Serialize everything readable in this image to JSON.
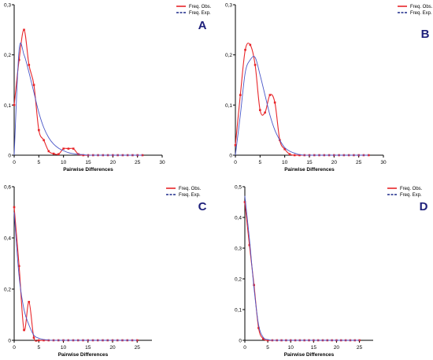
{
  "chart_data": [
    {
      "type": "line",
      "panel_letter": "A",
      "xlabel": "Pairwise Differences",
      "ylabel": "",
      "xlim": [
        0,
        30
      ],
      "ylim": [
        0,
        0.3
      ],
      "x_ticks": [
        "0",
        "5",
        "10",
        "15",
        "20",
        "25",
        "30"
      ],
      "y_ticks": [
        "0",
        "0,1",
        "0,2",
        "0,3"
      ],
      "legend_position": "top-right",
      "grid": false,
      "series": [
        {
          "name": "Freq. Obs.",
          "color": "#e8262a",
          "style": "solid-markers",
          "x": [
            0,
            1,
            2,
            3,
            4,
            5,
            6,
            7,
            8,
            9,
            10,
            11,
            12,
            13,
            14,
            15,
            16,
            17,
            18,
            19,
            20,
            21,
            22,
            23,
            24,
            25,
            26
          ],
          "values": [
            0.1,
            0.19,
            0.25,
            0.18,
            0.14,
            0.05,
            0.03,
            0.008,
            0.003,
            0.002,
            0.013,
            0.013,
            0.013,
            0.002,
            0,
            0,
            0,
            0,
            0,
            0,
            0,
            0,
            0,
            0,
            0,
            0,
            0
          ]
        },
        {
          "name": "Freq. Exp.",
          "color": "#4a57c8",
          "style": "solid",
          "x": [
            0,
            1,
            2,
            3,
            4,
            5,
            6,
            7,
            8,
            9,
            10,
            11,
            12,
            13,
            14,
            15,
            16,
            17,
            18,
            19,
            20,
            21,
            22,
            23,
            24,
            25,
            26
          ],
          "values": [
            0,
            0.21,
            0.2,
            0.165,
            0.125,
            0.085,
            0.055,
            0.035,
            0.022,
            0.014,
            0.009,
            0.005,
            0.003,
            0.002,
            0.001,
            0,
            0,
            0,
            0,
            0,
            0,
            0,
            0,
            0,
            0,
            0,
            0
          ]
        }
      ]
    },
    {
      "type": "line",
      "panel_letter": "B",
      "xlabel": "Pairwise Differences",
      "ylabel": "",
      "xlim": [
        0,
        30
      ],
      "ylim": [
        0,
        0.3
      ],
      "x_ticks": [
        "0",
        "5",
        "10",
        "15",
        "20",
        "25",
        "30"
      ],
      "y_ticks": [
        "0",
        "0,1",
        "0,2",
        "0,3"
      ],
      "legend_position": "top-right",
      "grid": false,
      "series": [
        {
          "name": "Freq. Obs.",
          "color": "#e8262a",
          "style": "solid-markers",
          "x": [
            0,
            1,
            2,
            3,
            4,
            5,
            6,
            7,
            8,
            9,
            10,
            11,
            12,
            13,
            14,
            15,
            16,
            17,
            18,
            19,
            20,
            21,
            22,
            23,
            24,
            25,
            26,
            27
          ],
          "values": [
            0.02,
            0.12,
            0.21,
            0.22,
            0.18,
            0.09,
            0.085,
            0.12,
            0.105,
            0.03,
            0.012,
            0.002,
            0,
            0,
            0,
            0,
            0,
            0,
            0,
            0,
            0,
            0,
            0,
            0,
            0,
            0,
            0,
            0
          ]
        },
        {
          "name": "Freq. Exp.",
          "color": "#4a57c8",
          "style": "solid",
          "x": [
            0,
            1,
            2,
            3,
            4,
            5,
            6,
            7,
            8,
            9,
            10,
            11,
            12,
            13,
            14,
            15,
            16,
            17,
            18,
            19,
            20,
            21,
            22,
            23,
            24,
            25,
            26,
            27
          ],
          "values": [
            0,
            0.08,
            0.165,
            0.19,
            0.195,
            0.16,
            0.12,
            0.08,
            0.05,
            0.03,
            0.015,
            0.008,
            0.004,
            0.001,
            0,
            0,
            0,
            0,
            0,
            0,
            0,
            0,
            0,
            0,
            0,
            0,
            0,
            0
          ]
        }
      ]
    },
    {
      "type": "line",
      "panel_letter": "C",
      "xlabel": "Pairwise Differences",
      "ylabel": "",
      "xlim": [
        0,
        28
      ],
      "ylim": [
        0,
        0.6
      ],
      "x_ticks": [
        "0",
        "5",
        "10",
        "15",
        "20",
        "25"
      ],
      "y_ticks": [
        "0",
        "0,2",
        "0,4",
        "0,6"
      ],
      "legend_position": "top-right",
      "grid": false,
      "series": [
        {
          "name": "Freq. Obs.",
          "color": "#e8262a",
          "style": "solid-markers",
          "x": [
            0,
            1,
            2,
            3,
            4,
            5,
            6,
            7,
            8,
            9,
            10,
            11,
            12,
            13,
            14,
            15,
            16,
            17,
            18,
            19,
            20,
            21,
            22,
            23,
            24,
            25
          ],
          "values": [
            0.52,
            0.29,
            0.04,
            0.15,
            0.01,
            0,
            0,
            0,
            0,
            0,
            0,
            0,
            0,
            0,
            0,
            0,
            0,
            0,
            0,
            0,
            0,
            0,
            0,
            0,
            0,
            0
          ]
        },
        {
          "name": "Freq. Exp.",
          "color": "#4a57c8",
          "style": "solid",
          "x": [
            0,
            1,
            2,
            3,
            4,
            5,
            6,
            7,
            8,
            9,
            10,
            11,
            12,
            13,
            14,
            15,
            16,
            17,
            18,
            19,
            20,
            21,
            22,
            23,
            24,
            25
          ],
          "values": [
            0.5,
            0.25,
            0.12,
            0.06,
            0.02,
            0.008,
            0.003,
            0.001,
            0,
            0,
            0,
            0,
            0,
            0,
            0,
            0,
            0,
            0,
            0,
            0,
            0,
            0,
            0,
            0,
            0,
            0
          ]
        }
      ]
    },
    {
      "type": "line",
      "panel_letter": "D",
      "xlabel": "Pairwise Differences",
      "ylabel": "",
      "xlim": [
        0,
        28
      ],
      "ylim": [
        0,
        0.5
      ],
      "x_ticks": [
        "0",
        "5",
        "10",
        "15",
        "20",
        "25"
      ],
      "y_ticks": [
        "0",
        "0,1",
        "0,2",
        "0,3",
        "0,4",
        "0,5"
      ],
      "legend_position": "top-right",
      "grid": false,
      "series": [
        {
          "name": "Freq. Obs.",
          "color": "#e8262a",
          "style": "solid-markers",
          "x": [
            0,
            1,
            2,
            3,
            4,
            5,
            6,
            7,
            8,
            9,
            10,
            11,
            12,
            13,
            14,
            15,
            16,
            17,
            18,
            19,
            20,
            21,
            22,
            23,
            24,
            25
          ],
          "values": [
            0.45,
            0.31,
            0.18,
            0.04,
            0.005,
            0,
            0,
            0,
            0,
            0,
            0,
            0,
            0,
            0,
            0,
            0,
            0,
            0,
            0,
            0,
            0,
            0,
            0,
            0,
            0,
            0
          ]
        },
        {
          "name": "Freq. Exp.",
          "color": "#4a57c8",
          "style": "solid",
          "x": [
            0,
            1,
            2,
            3,
            4,
            5,
            6,
            7,
            8,
            9,
            10,
            11,
            12,
            13,
            14,
            15,
            16,
            17,
            18,
            19,
            20,
            21,
            22,
            23,
            24,
            25
          ],
          "values": [
            0.47,
            0.33,
            0.17,
            0.05,
            0.01,
            0.002,
            0,
            0,
            0,
            0,
            0,
            0,
            0,
            0,
            0,
            0,
            0,
            0,
            0,
            0,
            0,
            0,
            0,
            0,
            0,
            0
          ]
        }
      ]
    }
  ]
}
